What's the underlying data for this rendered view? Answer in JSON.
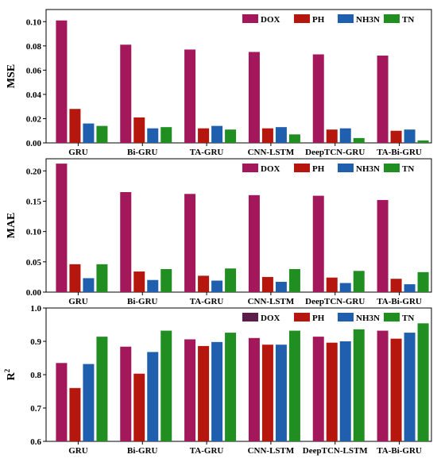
{
  "chart_data": [
    {
      "type": "bar",
      "ylabel": "MSE",
      "ylim": [
        0,
        0.11
      ],
      "yticks": [
        0.0,
        0.02,
        0.04,
        0.06,
        0.08,
        0.1
      ],
      "ytick_labels": [
        "0.00",
        "0.02",
        "0.04",
        "0.06",
        "0.08",
        "0.10"
      ],
      "categories": [
        "GRU",
        "Bi-GRU",
        "TA-GRU",
        "CNN-LSTM",
        "DeepTCN-GRU",
        "TA-Bi-GRU"
      ],
      "legend_position": "top-right",
      "series": [
        {
          "name": "DOX",
          "values": [
            0.101,
            0.081,
            0.077,
            0.075,
            0.073,
            0.072
          ]
        },
        {
          "name": "PH",
          "values": [
            0.028,
            0.021,
            0.012,
            0.012,
            0.011,
            0.01
          ]
        },
        {
          "name": "NH3N",
          "values": [
            0.016,
            0.012,
            0.014,
            0.013,
            0.012,
            0.011
          ]
        },
        {
          "name": "TN",
          "values": [
            0.014,
            0.013,
            0.011,
            0.007,
            0.004,
            0.002
          ]
        }
      ]
    },
    {
      "type": "bar",
      "ylabel": "MAE",
      "ylim": [
        0,
        0.22
      ],
      "yticks": [
        0.0,
        0.05,
        0.1,
        0.15,
        0.2
      ],
      "ytick_labels": [
        "0.00",
        "0.05",
        "0.10",
        "0.15",
        "0.20"
      ],
      "categories": [
        "GRU",
        "Bi-GRU",
        "TA-GRU",
        "CNN-LSTM",
        "DeepTCN-GRU",
        "TA-Bi-GRU"
      ],
      "legend_position": "top-right",
      "series": [
        {
          "name": "DOX",
          "values": [
            0.212,
            0.165,
            0.162,
            0.16,
            0.159,
            0.152
          ]
        },
        {
          "name": "PH",
          "values": [
            0.046,
            0.034,
            0.027,
            0.025,
            0.024,
            0.022
          ]
        },
        {
          "name": "NH3N",
          "values": [
            0.023,
            0.02,
            0.019,
            0.017,
            0.015,
            0.013
          ]
        },
        {
          "name": "TN",
          "values": [
            0.046,
            0.038,
            0.039,
            0.038,
            0.035,
            0.033
          ]
        }
      ]
    },
    {
      "type": "bar",
      "ylabel_main": "R",
      "ylabel_sup": "2",
      "ylim": [
        0.6,
        1.0
      ],
      "yticks": [
        0.6,
        0.7,
        0.8,
        0.9,
        1.0
      ],
      "ytick_labels": [
        "0.6",
        "0.7",
        "0.8",
        "0.9",
        "1.0"
      ],
      "categories": [
        "GRU",
        "Bi-GRU",
        "TA-GRU",
        "CNN-LSTM",
        "DeepTCN-LSTM",
        "TA-Bi-GRU"
      ],
      "legend_position": "top-right",
      "series": [
        {
          "name": "DOX",
          "values": [
            0.835,
            0.884,
            0.906,
            0.91,
            0.914,
            0.932
          ]
        },
        {
          "name": "PH",
          "values": [
            0.76,
            0.803,
            0.886,
            0.89,
            0.896,
            0.908
          ]
        },
        {
          "name": "NH3N",
          "values": [
            0.832,
            0.868,
            0.898,
            0.89,
            0.9,
            0.926
          ]
        },
        {
          "name": "TN",
          "values": [
            0.914,
            0.932,
            0.926,
            0.932,
            0.936,
            0.954
          ]
        }
      ]
    }
  ],
  "colors": {
    "DOX": "#a3185a",
    "PH": "#b5170f",
    "NH3N": "#1f5fae",
    "TN": "#218e22",
    "legend_DOX_third_panel": "#5c1d4a"
  }
}
